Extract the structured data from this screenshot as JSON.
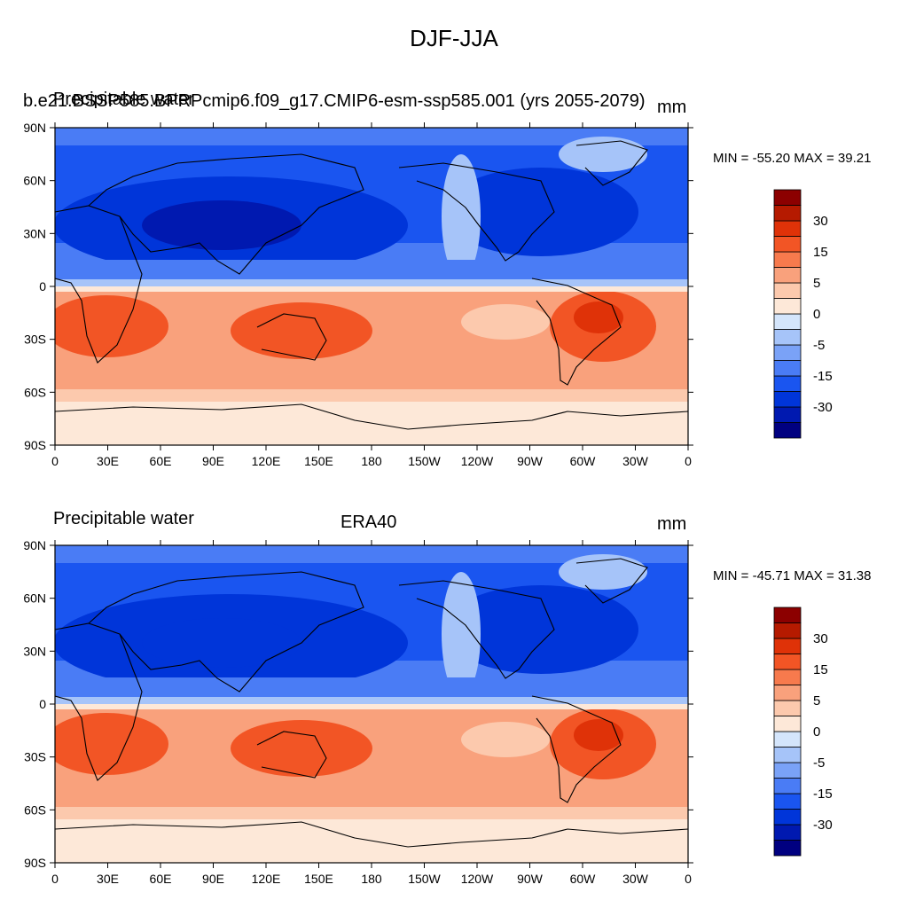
{
  "title": "DJF-JJA",
  "panels": [
    {
      "left_label": "Precipitable water",
      "center_label": "b.e21.BSSP585.BPRPcmip6.f09_g17.CMIP6-esm-ssp585.001 (yrs 2055-2079)",
      "units": "mm",
      "minmax": "MIN = -55.20 MAX =  39.21"
    },
    {
      "left_label": "Precipitable water",
      "center_label": "ERA40",
      "units": "mm",
      "minmax": "MIN = -45.71 MAX =  31.38"
    }
  ],
  "lat_ticks": [
    "90N",
    "60N",
    "30N",
    "0",
    "30S",
    "60S",
    "90S"
  ],
  "lon_ticks": [
    "0",
    "30E",
    "60E",
    "90E",
    "120E",
    "150E",
    "180",
    "150W",
    "120W",
    "90W",
    "60W",
    "30W",
    "0"
  ],
  "colorbar": {
    "colors": [
      "#000080",
      "#0019b0",
      "#0035d9",
      "#1a55f0",
      "#4a7cf5",
      "#7aa2f7",
      "#a6c4f9",
      "#d4e5fb",
      "#fde8d8",
      "#fcc9ad",
      "#f9a17c",
      "#f77a4d",
      "#f25525",
      "#df3208",
      "#b51a00",
      "#8c0000"
    ],
    "labels": [
      "30",
      "15",
      "5",
      "0",
      "-5",
      "-15",
      "-30"
    ]
  },
  "map_colors": {
    "strong_blue": "#0035d9",
    "mid_blue": "#1a55f0",
    "light_blue": "#4a7cf5",
    "pale_blue": "#a6c4f9",
    "peach": "#fde8d8",
    "light_orange": "#fcc9ad",
    "orange": "#f9a17c",
    "red_orange": "#f25525",
    "dark_red": "#df3208"
  }
}
